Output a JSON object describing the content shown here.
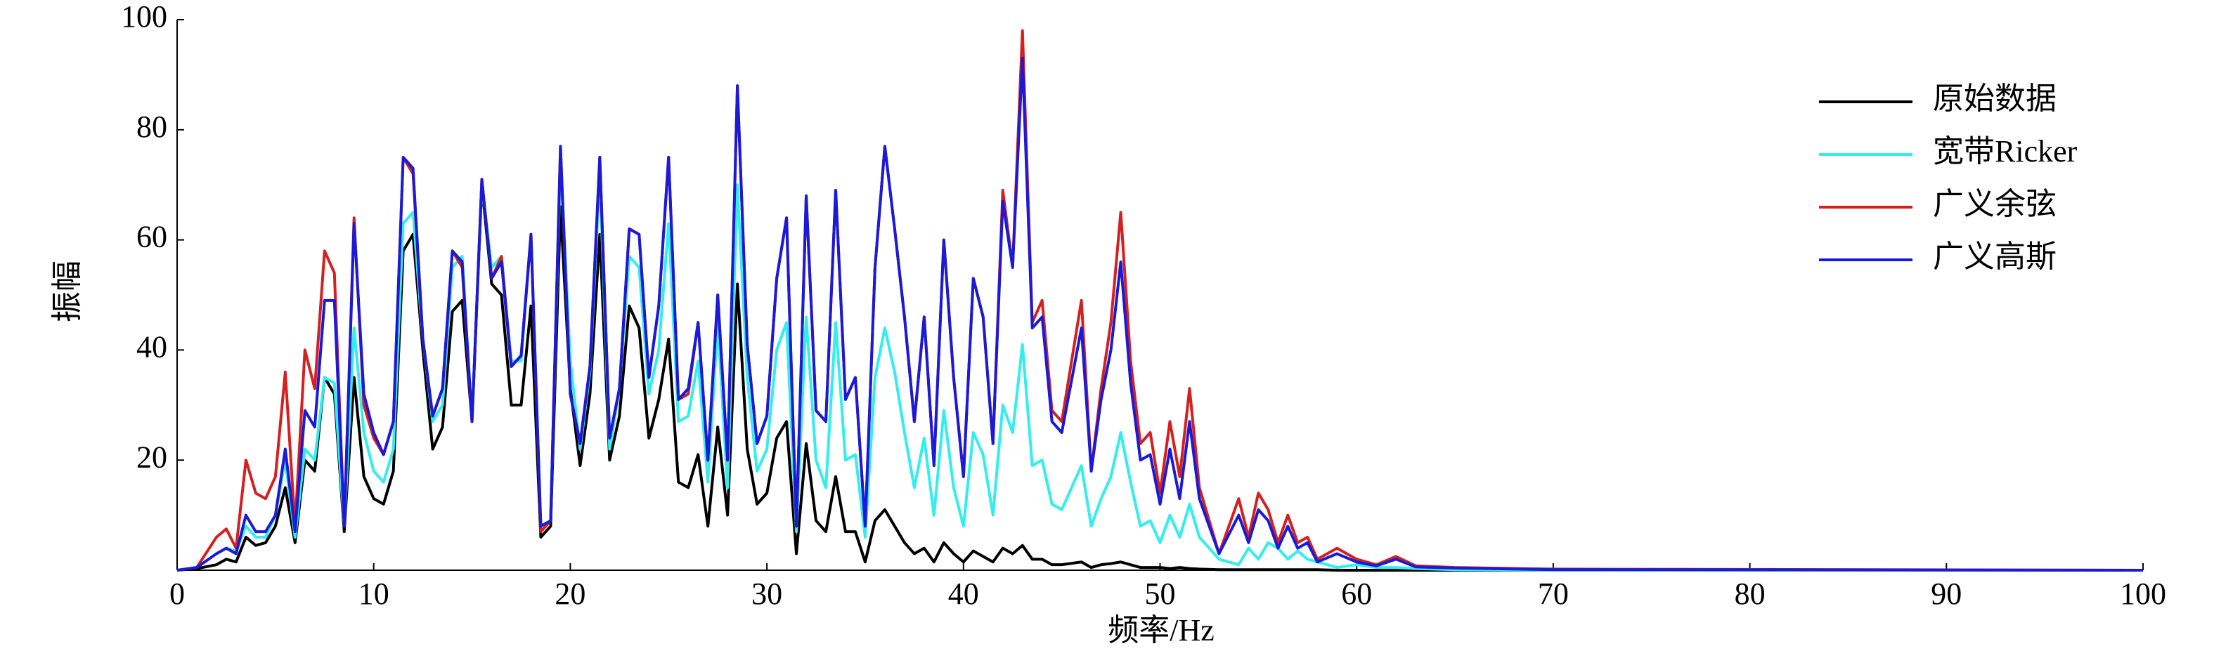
{
  "chart_data": {
    "type": "line",
    "xlabel": "频率/Hz",
    "ylabel": "振幅",
    "xlim": [
      0,
      100
    ],
    "ylim": [
      0,
      100
    ],
    "xticks": [
      0,
      10,
      20,
      30,
      40,
      50,
      60,
      70,
      80,
      90,
      100
    ],
    "yticks": [
      20,
      40,
      60,
      80,
      100
    ],
    "legend": "upper right",
    "x": [
      0,
      1,
      2,
      2.5,
      3,
      3.5,
      4,
      4.5,
      5,
      5.5,
      6,
      6.5,
      7,
      7.5,
      8,
      8.5,
      9,
      9.5,
      10,
      10.5,
      11,
      11.5,
      12,
      12.5,
      13,
      13.5,
      14,
      14.5,
      15,
      15.5,
      16,
      16.5,
      17,
      17.5,
      18,
      18.5,
      19,
      19.5,
      20,
      20.5,
      21,
      21.5,
      22,
      22.5,
      23,
      23.5,
      24,
      24.5,
      25,
      25.5,
      26,
      26.5,
      27,
      27.5,
      28,
      28.5,
      29,
      29.5,
      30,
      30.5,
      31,
      31.5,
      32,
      32.5,
      33,
      33.5,
      34,
      34.5,
      35,
      35.5,
      36,
      36.5,
      37,
      37.5,
      38,
      38.5,
      39,
      39.5,
      40,
      40.5,
      41,
      41.5,
      42,
      42.5,
      43,
      43.5,
      44,
      44.5,
      45,
      46,
      46.5,
      47,
      47.5,
      48,
      48.5,
      49,
      49.5,
      50,
      50.5,
      51,
      51.5,
      52,
      53,
      54,
      54.5,
      55,
      55.5,
      56,
      56.5,
      57,
      57.5,
      58,
      59,
      60,
      61,
      62,
      63,
      65,
      70,
      100
    ],
    "series": [
      {
        "name": "原始数据",
        "color": "#000000",
        "values": [
          0,
          0.3,
          1,
          2,
          1.5,
          6,
          4.5,
          5,
          8,
          15,
          5,
          20,
          18,
          35,
          32,
          7,
          35,
          17,
          13,
          12,
          18,
          58,
          61,
          40,
          22,
          26,
          47,
          49,
          27,
          70,
          52,
          50,
          30,
          30,
          48,
          6,
          8,
          66,
          33,
          19,
          32,
          61,
          20,
          28,
          48,
          44,
          24,
          31,
          42,
          16,
          15,
          21,
          8,
          26,
          10,
          52,
          22,
          12,
          14,
          24,
          27,
          3,
          23,
          9,
          7,
          17,
          7,
          7,
          1.5,
          9,
          11,
          8,
          5,
          3,
          4,
          1.5,
          5,
          3,
          1.5,
          3.5,
          2.5,
          1.5,
          4,
          3,
          4.5,
          2,
          2,
          1,
          1,
          1.5,
          0.5,
          1,
          1.2,
          1.5,
          1,
          0.5,
          0.5,
          0.5,
          0.3,
          0.5,
          0.3,
          0.2,
          0.1,
          0.1,
          0.1,
          0.1,
          0.1,
          0.1,
          0.1,
          0.1,
          0.1,
          0.1,
          0,
          0,
          0,
          0,
          0,
          0,
          0,
          0
        ]
      },
      {
        "name": "宽带Ricker",
        "color": "#33eeee",
        "values": [
          0,
          0.5,
          3,
          4,
          3.5,
          8,
          6,
          6,
          10,
          20,
          6,
          22,
          20,
          35,
          34,
          8,
          44,
          25,
          18,
          16,
          22,
          63,
          65,
          42,
          27,
          30,
          55,
          57,
          27,
          70,
          55,
          57,
          38,
          38,
          61,
          8,
          9,
          75,
          38,
          22,
          36,
          72,
          22,
          33,
          57,
          55,
          32,
          40,
          63,
          27,
          28,
          38,
          16,
          45,
          15,
          70,
          35,
          18,
          22,
          40,
          45,
          7,
          46,
          20,
          15,
          45,
          20,
          21,
          6,
          35,
          44,
          36,
          25,
          15,
          24,
          10,
          29,
          15,
          8,
          25,
          21,
          10,
          30,
          25,
          41,
          19,
          20,
          12,
          11,
          19,
          8,
          13,
          17,
          25,
          16,
          8,
          9,
          5,
          10,
          6,
          12,
          6,
          2,
          1,
          4,
          2,
          5,
          4,
          2,
          3.5,
          2,
          1.5,
          0.5,
          1,
          0.5,
          0.5,
          0.3,
          0.1,
          0,
          0
        ]
      },
      {
        "name": "广义余弦",
        "color": "#d42020",
        "values": [
          0,
          0.5,
          6,
          7.5,
          4,
          20,
          14,
          13,
          17,
          36,
          8,
          40,
          33,
          58,
          54,
          8,
          64,
          30,
          24,
          21,
          27,
          75,
          72,
          42,
          28,
          33,
          58,
          55,
          27,
          71,
          53,
          57,
          37,
          39,
          61,
          7,
          9,
          77,
          32,
          23,
          37,
          75,
          24,
          33,
          62,
          61,
          35,
          48,
          75,
          31,
          32,
          45,
          20,
          50,
          20,
          88,
          41,
          23,
          28,
          53,
          64,
          8,
          68,
          29,
          27,
          69,
          31,
          35,
          8,
          55,
          77,
          62,
          46,
          27,
          46,
          19,
          60,
          35,
          17,
          53,
          46,
          23,
          69,
          55,
          98,
          45,
          49,
          29,
          27,
          49,
          18,
          33,
          45,
          65,
          38,
          23,
          25,
          14,
          27,
          17,
          33,
          15,
          3,
          13,
          6,
          14,
          11,
          5,
          10,
          5,
          6,
          2,
          4,
          2,
          1,
          2.5,
          0.8,
          0.5,
          0.2,
          0
        ]
      },
      {
        "name": "广义高斯",
        "color": "#1a1ad8",
        "values": [
          0,
          0.5,
          3,
          4,
          3,
          10,
          7,
          7,
          10,
          22,
          7,
          29,
          26,
          49,
          49,
          8,
          63,
          32,
          25,
          21,
          27,
          75,
          73,
          42,
          28,
          33,
          58,
          56,
          27,
          71,
          53,
          56,
          37,
          39,
          61,
          8,
          9,
          77,
          32,
          23,
          37,
          75,
          24,
          33,
          62,
          61,
          35,
          48,
          75,
          31,
          33,
          45,
          20,
          50,
          20,
          88,
          41,
          23,
          28,
          53,
          64,
          8,
          68,
          29,
          27,
          69,
          31,
          35,
          8,
          55,
          77,
          62,
          46,
          27,
          46,
          19,
          60,
          35,
          17,
          53,
          46,
          23,
          67,
          55,
          93,
          44,
          46,
          27,
          25,
          44,
          18,
          31,
          40,
          56,
          34,
          20,
          21,
          12,
          22,
          13,
          27,
          13,
          3,
          10,
          5,
          11,
          9,
          4,
          8,
          4,
          5,
          1.5,
          3,
          1.5,
          0.8,
          2,
          0.6,
          0.4,
          0.1,
          0
        ]
      }
    ]
  }
}
